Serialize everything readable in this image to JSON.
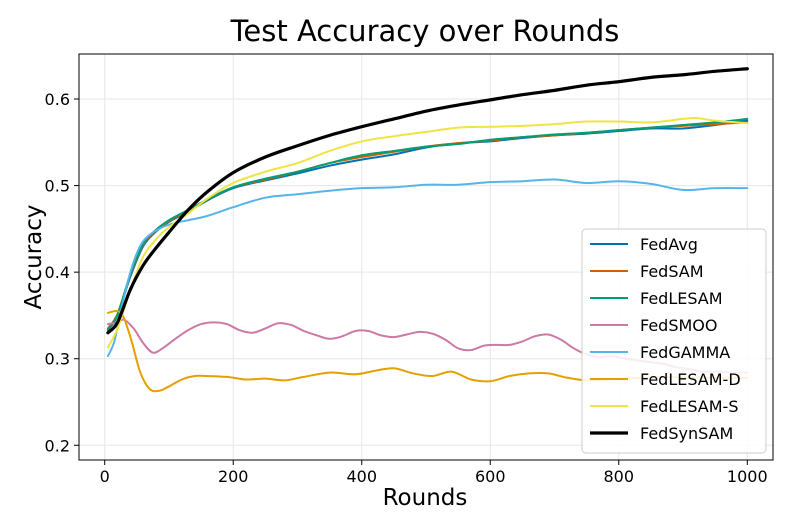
{
  "chart_data": {
    "type": "line",
    "title": "Test Accuracy over Rounds",
    "xlabel": "Rounds",
    "ylabel": "Accuracy",
    "xlim": [
      -40,
      1040
    ],
    "ylim": [
      0.183,
      0.652
    ],
    "xticks": [
      0,
      200,
      400,
      600,
      800,
      1000
    ],
    "yticks": [
      0.2,
      0.3,
      0.4,
      0.5,
      0.6
    ],
    "xtick_labels": [
      "0",
      "200",
      "400",
      "600",
      "800",
      "1000"
    ],
    "ytick_labels": [
      "0.2",
      "0.3",
      "0.4",
      "0.5",
      "0.6"
    ],
    "grid": true,
    "legend_position": "lower-right",
    "series": [
      {
        "name": "FedAvg",
        "color": "#0072B2",
        "x": [
          5,
          20,
          40,
          60,
          80,
          100,
          130,
          160,
          200,
          250,
          300,
          350,
          400,
          450,
          500,
          550,
          600,
          650,
          700,
          750,
          800,
          850,
          900,
          950,
          1000
        ],
        "y": [
          0.333,
          0.35,
          0.395,
          0.43,
          0.447,
          0.458,
          0.47,
          0.483,
          0.497,
          0.506,
          0.514,
          0.523,
          0.53,
          0.536,
          0.544,
          0.549,
          0.551,
          0.555,
          0.558,
          0.56,
          0.563,
          0.566,
          0.566,
          0.57,
          0.575
        ]
      },
      {
        "name": "FedSAM",
        "color": "#D55E00",
        "x": [
          5,
          20,
          40,
          60,
          80,
          100,
          130,
          160,
          200,
          250,
          300,
          350,
          400,
          450,
          500,
          550,
          600,
          650,
          700,
          750,
          800,
          850,
          900,
          950,
          1000
        ],
        "y": [
          0.335,
          0.352,
          0.397,
          0.432,
          0.448,
          0.459,
          0.471,
          0.484,
          0.498,
          0.507,
          0.516,
          0.526,
          0.533,
          0.539,
          0.545,
          0.549,
          0.552,
          0.556,
          0.558,
          0.561,
          0.564,
          0.567,
          0.569,
          0.571,
          0.573
        ]
      },
      {
        "name": "FedLESAM",
        "color": "#009E73",
        "x": [
          5,
          20,
          40,
          60,
          80,
          100,
          130,
          160,
          200,
          250,
          300,
          350,
          400,
          450,
          500,
          550,
          600,
          650,
          700,
          750,
          800,
          850,
          900,
          950,
          1000
        ],
        "y": [
          0.334,
          0.351,
          0.398,
          0.433,
          0.449,
          0.46,
          0.472,
          0.484,
          0.498,
          0.508,
          0.516,
          0.526,
          0.535,
          0.54,
          0.545,
          0.548,
          0.553,
          0.556,
          0.559,
          0.561,
          0.564,
          0.567,
          0.57,
          0.573,
          0.577
        ]
      },
      {
        "name": "FedSMOO",
        "color": "#CC79A7",
        "x": [
          5,
          20,
          30,
          45,
          60,
          75,
          90,
          110,
          130,
          150,
          170,
          190,
          210,
          230,
          250,
          270,
          290,
          310,
          330,
          350,
          370,
          390,
          410,
          430,
          450,
          470,
          490,
          510,
          530,
          550,
          570,
          590,
          610,
          630,
          650,
          670,
          690,
          710,
          730,
          750,
          770,
          790,
          810,
          830,
          850,
          870,
          890,
          910,
          930,
          950,
          970,
          990,
          1000
        ],
        "y": [
          0.34,
          0.342,
          0.345,
          0.335,
          0.318,
          0.307,
          0.312,
          0.323,
          0.333,
          0.34,
          0.342,
          0.34,
          0.333,
          0.33,
          0.335,
          0.341,
          0.339,
          0.332,
          0.327,
          0.323,
          0.326,
          0.332,
          0.332,
          0.327,
          0.325,
          0.328,
          0.331,
          0.329,
          0.322,
          0.312,
          0.31,
          0.315,
          0.316,
          0.316,
          0.32,
          0.326,
          0.328,
          0.322,
          0.312,
          0.305,
          0.302,
          0.303,
          0.3,
          0.298,
          0.296,
          0.294,
          0.29,
          0.288,
          0.285,
          0.285,
          0.284,
          0.284,
          0.284
        ]
      },
      {
        "name": "FedGAMMA",
        "color": "#56B4E9",
        "x": [
          5,
          15,
          25,
          40,
          55,
          70,
          90,
          110,
          130,
          160,
          200,
          250,
          300,
          350,
          400,
          450,
          500,
          550,
          600,
          650,
          700,
          750,
          800,
          850,
          900,
          950,
          1000
        ],
        "y": [
          0.303,
          0.32,
          0.355,
          0.4,
          0.43,
          0.443,
          0.452,
          0.457,
          0.46,
          0.465,
          0.475,
          0.486,
          0.49,
          0.494,
          0.497,
          0.498,
          0.501,
          0.501,
          0.504,
          0.505,
          0.507,
          0.503,
          0.505,
          0.502,
          0.495,
          0.497,
          0.497
        ]
      },
      {
        "name": "FedLESAM-D",
        "color": "#E69F00",
        "x": [
          5,
          25,
          40,
          55,
          70,
          85,
          100,
          120,
          140,
          160,
          190,
          220,
          250,
          280,
          310,
          350,
          390,
          420,
          450,
          480,
          510,
          540,
          570,
          600,
          630,
          660,
          690,
          720,
          750,
          780,
          810,
          840,
          870,
          900,
          930,
          960,
          990,
          1000
        ],
        "y": [
          0.353,
          0.353,
          0.325,
          0.285,
          0.265,
          0.263,
          0.268,
          0.276,
          0.28,
          0.28,
          0.279,
          0.276,
          0.277,
          0.275,
          0.279,
          0.284,
          0.282,
          0.286,
          0.289,
          0.283,
          0.28,
          0.285,
          0.276,
          0.274,
          0.28,
          0.283,
          0.283,
          0.278,
          0.275,
          0.276,
          0.277,
          0.278,
          0.279,
          0.278,
          0.278,
          0.278,
          0.278,
          0.278
        ]
      },
      {
        "name": "FedLESAM-S",
        "color": "#F0E442",
        "x": [
          5,
          20,
          40,
          60,
          80,
          100,
          130,
          160,
          200,
          250,
          300,
          350,
          400,
          450,
          500,
          550,
          600,
          650,
          700,
          750,
          800,
          850,
          900,
          920,
          950,
          1000
        ],
        "y": [
          0.313,
          0.335,
          0.38,
          0.418,
          0.438,
          0.452,
          0.468,
          0.485,
          0.503,
          0.516,
          0.526,
          0.54,
          0.551,
          0.557,
          0.562,
          0.567,
          0.568,
          0.569,
          0.571,
          0.574,
          0.574,
          0.573,
          0.577,
          0.578,
          0.575,
          0.572
        ]
      },
      {
        "name": "FedSynSAM",
        "color": "#000000",
        "width": 3.2,
        "x": [
          5,
          20,
          40,
          60,
          80,
          100,
          130,
          160,
          200,
          250,
          300,
          350,
          400,
          450,
          500,
          550,
          600,
          650,
          700,
          750,
          800,
          850,
          900,
          950,
          1000
        ],
        "y": [
          0.33,
          0.342,
          0.38,
          0.408,
          0.428,
          0.446,
          0.472,
          0.493,
          0.515,
          0.533,
          0.546,
          0.558,
          0.568,
          0.577,
          0.586,
          0.593,
          0.599,
          0.605,
          0.61,
          0.616,
          0.62,
          0.625,
          0.628,
          0.632,
          0.635
        ]
      }
    ]
  }
}
